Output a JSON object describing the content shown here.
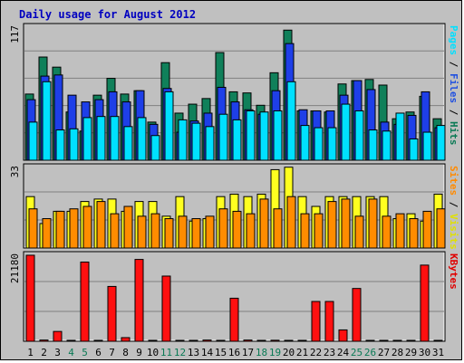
{
  "chart_data": {
    "type": "bar",
    "title": "Daily usage for August 2012",
    "categories": [
      "1",
      "2",
      "3",
      "4",
      "5",
      "6",
      "7",
      "8",
      "9",
      "10",
      "11",
      "12",
      "13",
      "14",
      "15",
      "16",
      "17",
      "18",
      "19",
      "20",
      "21",
      "22",
      "23",
      "24",
      "25",
      "26",
      "27",
      "28",
      "29",
      "30",
      "31"
    ],
    "weekend_days": [
      4,
      5,
      11,
      12,
      18,
      19,
      25,
      26
    ],
    "panels": [
      {
        "id": "hits-files-pages",
        "max_label": "117",
        "ymax": 117,
        "right_label": [
          {
            "text": "Pages",
            "color": "#00e0ff"
          },
          {
            "text": " / ",
            "color": "#000000"
          },
          {
            "text": "Files",
            "color": "#2050e0"
          },
          {
            "text": " / ",
            "color": "#000000"
          },
          {
            "text": "Hits",
            "color": "#0a7a55"
          }
        ],
        "series": [
          {
            "name": "Hits",
            "color": "#10805a",
            "values": [
              59,
              92,
              83,
              43,
              26,
              58,
              73,
              59,
              62,
              34,
              87,
              42,
              50,
              55,
              96,
              61,
              60,
              49,
              78,
              116,
              44,
              44,
              43,
              68,
              71,
              72,
              67,
              37,
              43,
              57,
              37
            ]
          },
          {
            "name": "Files",
            "color": "#1e3fe8",
            "values": [
              54,
              75,
              76,
              58,
              52,
              54,
              61,
              52,
              62,
              32,
              64,
              25,
              35,
              42,
              65,
              52,
              45,
              41,
              62,
              104,
              45,
              44,
              44,
              58,
              71,
              63,
              34,
              32,
              40,
              61,
              29
            ]
          },
          {
            "name": "Pages",
            "color": "#00e0ff",
            "values": [
              34,
              70,
              27,
              28,
              38,
              39,
              39,
              30,
              38,
              22,
              61,
              36,
              33,
              30,
              41,
              36,
              44,
              43,
              44,
              70,
              31,
              29,
              29,
              50,
              44,
              27,
              26,
              42,
              19,
              25,
              31
            ]
          }
        ]
      },
      {
        "id": "visits-sites",
        "max_label": "33",
        "ymax": 33,
        "right_label": [
          {
            "text": "Sites",
            "color": "#ff8a00"
          },
          {
            "text": " / ",
            "color": "#000000"
          },
          {
            "text": "Visits",
            "color": "#e0e000"
          }
        ],
        "series": [
          {
            "name": "Visits",
            "color": "#ffff20",
            "values": [
              21,
              10,
              15,
              15,
              19,
              20,
              20,
              15,
              19,
              19,
              13,
              21,
              11,
              12,
              21,
              22,
              21,
              22,
              32,
              33,
              21,
              17,
              21,
              21,
              21,
              21,
              21,
              12,
              14,
              11,
              22
            ]
          },
          {
            "name": "Sites",
            "color": "#ff8c00",
            "values": [
              16,
              12,
              15,
              16,
              17,
              19,
              14,
              17,
              13,
              14,
              12,
              13,
              12,
              13,
              16,
              15,
              14,
              20,
              16,
              21,
              14,
              14,
              19,
              20,
              13,
              20,
              13,
              14,
              12,
              15,
              16
            ]
          }
        ]
      },
      {
        "id": "kbytes",
        "max_label": "21180",
        "ymax": 21180,
        "right_label": [
          {
            "text": "KBytes",
            "color": "#e00000"
          }
        ],
        "series": [
          {
            "name": "KBytes",
            "color": "#ff1010",
            "values": [
              21180,
              300,
              2420,
              200,
              19500,
              100,
              13500,
              900,
              20150,
              200,
              16050,
              200,
              200,
              300,
              100,
              10600,
              300,
              100,
              250,
              200,
              150,
              9800,
              9800,
              2800,
              13000,
              100,
              200,
              100,
              200,
              18750,
              100
            ]
          }
        ]
      }
    ]
  }
}
